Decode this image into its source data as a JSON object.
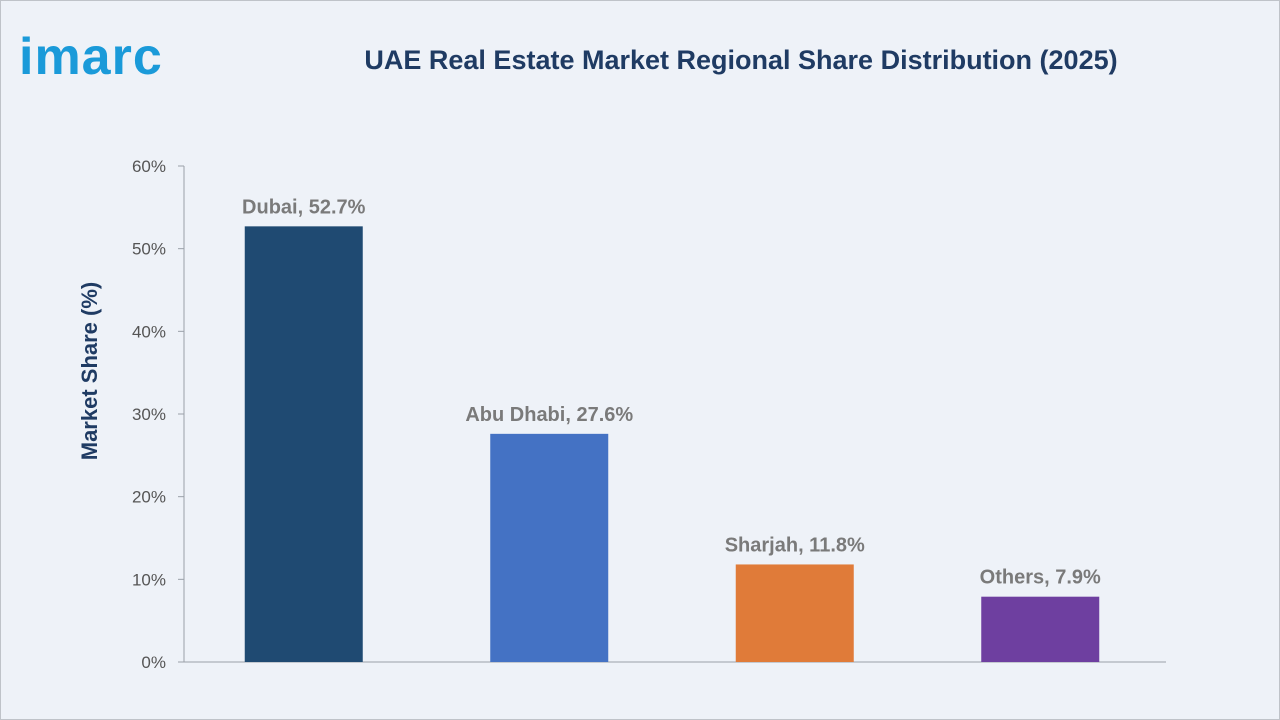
{
  "brand": {
    "logo_text": "imarc",
    "logo_color": "#1a9ad9"
  },
  "chart_data": {
    "type": "bar",
    "title": "UAE Real Estate Market Regional Share Distribution (2025)",
    "xlabel": "",
    "ylabel": "Market Share (%)",
    "ylim": [
      0,
      60
    ],
    "yticks": [
      "0%",
      "10%",
      "20%",
      "30%",
      "40%",
      "50%",
      "60%"
    ],
    "categories": [
      "Dubai",
      "Abu Dhabi",
      "Sharjah",
      "Others"
    ],
    "values": [
      52.7,
      27.6,
      11.8,
      7.9
    ],
    "data_labels": [
      "Dubai, 52.7%",
      "Abu Dhabi, 27.6%",
      "Sharjah, 11.8%",
      "Others, 7.9%"
    ],
    "colors": [
      "#1f4a72",
      "#4472c4",
      "#e07b39",
      "#6e3fa0"
    ],
    "grid": false,
    "legend": "none"
  }
}
